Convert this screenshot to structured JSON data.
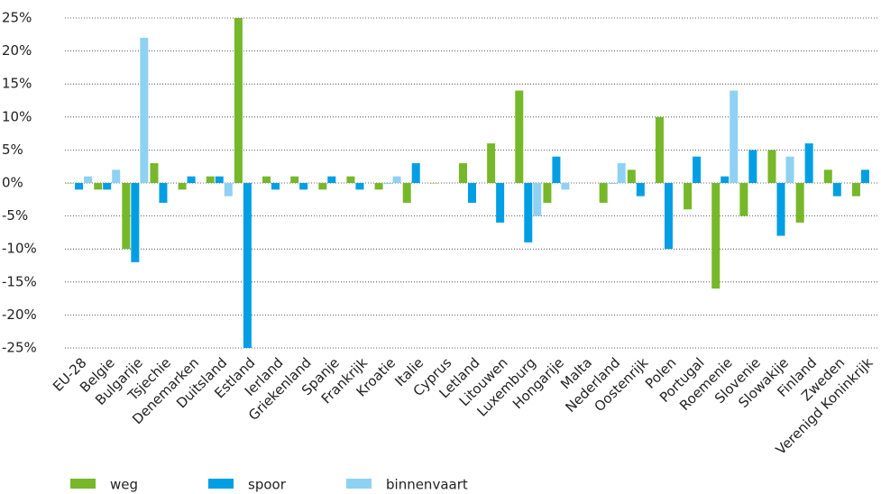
{
  "chart_data": {
    "type": "bar",
    "categories": [
      "EU-28",
      "Belgie",
      "Bulgarije",
      "Tsjechie",
      "Denemarken",
      "Duitsland",
      "Estland",
      "Ierland",
      "Griekenland",
      "Spanje",
      "Frankrijk",
      "Kroatie",
      "Italie",
      "Cyprus",
      "Letland",
      "Litouwen",
      "Luxemburg",
      "Hongarije",
      "Malta",
      "Nederland",
      "Oostenrijk",
      "Polen",
      "Portugal",
      "Roemenie",
      "Slovenie",
      "Slowakije",
      "Finland",
      "Zweden",
      "Verenigd Koninkrijk"
    ],
    "series": [
      {
        "name": "weg",
        "color": "#76b82a",
        "values": [
          0,
          -1,
          -10,
          3,
          -1,
          1,
          25,
          1,
          1,
          -1,
          1,
          -1,
          -3,
          0,
          3,
          6,
          14,
          -3,
          null,
          -3,
          2,
          10,
          -4,
          -16,
          -5,
          5,
          -6,
          2,
          -2
        ]
      },
      {
        "name": "spoor",
        "color": "#009fe3",
        "values": [
          -1,
          -1,
          -12,
          -3,
          1,
          1,
          -25,
          -1,
          -1,
          1,
          -1,
          0,
          3,
          null,
          -3,
          -6,
          -9,
          4,
          null,
          0,
          -2,
          -10,
          4,
          1,
          5,
          -8,
          6,
          -2,
          2
        ]
      },
      {
        "name": "binnenvaart",
        "color": "#8fd1f2",
        "values": [
          1,
          2,
          22,
          null,
          null,
          -2,
          null,
          null,
          null,
          null,
          null,
          1,
          null,
          null,
          null,
          null,
          -5,
          -1,
          null,
          3,
          null,
          null,
          null,
          14,
          null,
          4,
          null,
          null,
          null
        ]
      }
    ],
    "ylim": [
      -25,
      25
    ],
    "yticks": [
      {
        "value": -25,
        "label": "-25%"
      },
      {
        "value": -20,
        "label": "-20%"
      },
      {
        "value": -15,
        "label": "-15%"
      },
      {
        "value": -10,
        "label": "-10%"
      },
      {
        "value": -5,
        "label": "-5%"
      },
      {
        "value": 0,
        "label": "0%"
      },
      {
        "value": 5,
        "label": "5%"
      },
      {
        "value": 10,
        "label": "10%"
      },
      {
        "value": 15,
        "label": "15%"
      },
      {
        "value": 20,
        "label": "20%"
      },
      {
        "value": 25,
        "label": "25%"
      }
    ],
    "grid": true,
    "legend": "bottom"
  }
}
